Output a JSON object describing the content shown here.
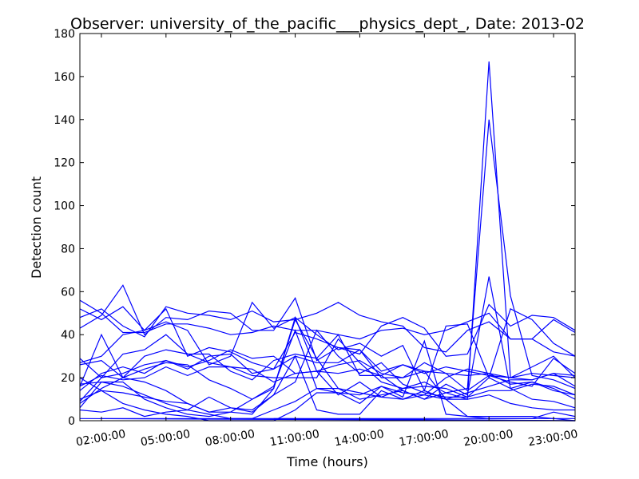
{
  "chart_data": {
    "type": "line",
    "title": "Observer: university_of_the_pacific___physics_dept_, Date: 2013-02",
    "xlabel": "Time (hours)",
    "ylabel": "Detection count",
    "xlim": [
      1,
      24
    ],
    "ylim": [
      0,
      180
    ],
    "x_ticks": [
      {
        "value": 2,
        "label": "02:00:00"
      },
      {
        "value": 5,
        "label": "05:00:00"
      },
      {
        "value": 8,
        "label": "08:00:00"
      },
      {
        "value": 11,
        "label": "11:00:00"
      },
      {
        "value": 14,
        "label": "14:00:00"
      },
      {
        "value": 17,
        "label": "17:00:00"
      },
      {
        "value": 20,
        "label": "20:00:00"
      },
      {
        "value": 23,
        "label": "23:00:00"
      }
    ],
    "y_ticks": [
      0,
      20,
      40,
      60,
      80,
      100,
      120,
      140,
      160,
      180
    ],
    "line_color": "#0000ff",
    "grid": false,
    "x": [
      1,
      2,
      3,
      4,
      5,
      6,
      7,
      8,
      9,
      10,
      11,
      12,
      13,
      14,
      15,
      16,
      17,
      18,
      19,
      20,
      21,
      22,
      23,
      24
    ],
    "series": [
      {
        "values": [
          56,
          50,
          41,
          41,
          45,
          45,
          43,
          40,
          41,
          44,
          42,
          42,
          40,
          38,
          42,
          43,
          40,
          42,
          46,
          50,
          38,
          38,
          47,
          41
        ]
      },
      {
        "values": [
          48,
          52,
          44,
          39,
          53,
          50,
          49,
          47,
          51,
          46,
          47,
          50,
          55,
          49,
          46,
          44,
          34,
          32,
          42,
          46,
          38,
          38,
          32,
          30
        ]
      },
      {
        "values": [
          43,
          49,
          63,
          40,
          48,
          47,
          51,
          50,
          42,
          42,
          57,
          28,
          34,
          31,
          44,
          48,
          43,
          30,
          31,
          54,
          44,
          49,
          48,
          42
        ]
      },
      {
        "values": [
          52,
          47,
          53,
          42,
          46,
          42,
          26,
          30,
          55,
          43,
          48,
          40,
          33,
          36,
          30,
          35,
          14,
          44,
          45,
          20,
          52,
          47,
          36,
          30
        ]
      },
      {
        "values": [
          27,
          30,
          40,
          42,
          52,
          30,
          34,
          32,
          27,
          24,
          41,
          38,
          34,
          33,
          23,
          26,
          23,
          22,
          21,
          22,
          20,
          25,
          30,
          20
        ]
      },
      {
        "values": [
          29,
          20,
          22,
          26,
          28,
          25,
          28,
          33,
          29,
          30,
          22,
          23,
          26,
          28,
          22,
          20,
          23,
          10,
          13,
          16,
          19,
          19,
          22,
          16
        ]
      },
      {
        "values": [
          16,
          40,
          20,
          30,
          33,
          31,
          27,
          25,
          21,
          20,
          20,
          20,
          38,
          27,
          18,
          15,
          16,
          15,
          11,
          20,
          15,
          18,
          14,
          12
        ]
      },
      {
        "values": [
          9,
          20,
          31,
          33,
          40,
          31,
          31,
          23,
          19,
          28,
          31,
          29,
          40,
          21,
          21,
          26,
          22,
          25,
          23,
          21,
          20,
          22,
          21,
          20
        ]
      },
      {
        "values": [
          14,
          22,
          25,
          22,
          28,
          24,
          30,
          31,
          22,
          24,
          30,
          27,
          27,
          33,
          20,
          20,
          27,
          22,
          14,
          21,
          18,
          16,
          29,
          22
        ]
      },
      {
        "values": [
          8,
          15,
          20,
          24,
          27,
          26,
          19,
          15,
          10,
          15,
          47,
          29,
          15,
          13,
          11,
          10,
          12,
          20,
          24,
          22,
          17,
          18,
          15,
          10
        ]
      },
      {
        "values": [
          6,
          18,
          16,
          12,
          8,
          5,
          11,
          6,
          5,
          12,
          18,
          42,
          30,
          22,
          27,
          17,
          13,
          11,
          11,
          14,
          14,
          17,
          16,
          12
        ]
      },
      {
        "values": [
          26,
          28,
          20,
          18,
          14,
          8,
          4,
          4,
          3,
          15,
          48,
          23,
          12,
          18,
          11,
          15,
          18,
          13,
          10,
          167,
          20,
          19,
          22,
          21
        ]
      },
      {
        "values": [
          16,
          21,
          19,
          20,
          25,
          21,
          25,
          25,
          24,
          18,
          22,
          23,
          22,
          24,
          21,
          14,
          10,
          13,
          15,
          140,
          58,
          21,
          19,
          15
        ]
      },
      {
        "values": [
          17,
          18,
          18,
          10,
          6,
          3,
          2,
          4,
          10,
          16,
          42,
          15,
          15,
          10,
          12,
          14,
          10,
          17,
          12,
          67,
          15,
          10,
          9,
          6
        ]
      },
      {
        "values": [
          10,
          14,
          13,
          11,
          9,
          8,
          4,
          6,
          4,
          12,
          30,
          5,
          3,
          3,
          14,
          10,
          14,
          10,
          10,
          12,
          8,
          6,
          5,
          5
        ]
      },
      {
        "values": [
          20,
          14,
          8,
          5,
          3,
          2,
          0,
          0,
          0,
          0,
          5,
          13,
          13,
          12,
          16,
          11,
          37,
          3,
          2,
          1,
          1,
          1,
          4,
          2
        ]
      },
      {
        "values": [
          5,
          4,
          6,
          2,
          4,
          5,
          3,
          1,
          1,
          5,
          9,
          15,
          13,
          8,
          16,
          13,
          12,
          10,
          2,
          2,
          2,
          2,
          1,
          0
        ]
      }
    ],
    "flat_segments": [
      {
        "x": [
          1,
          24
        ],
        "values": [
          1,
          0
        ]
      },
      {
        "x": [
          2,
          24
        ],
        "values": [
          1,
          1
        ]
      },
      {
        "x": [
          10,
          24
        ],
        "values": [
          1,
          0
        ]
      }
    ]
  }
}
